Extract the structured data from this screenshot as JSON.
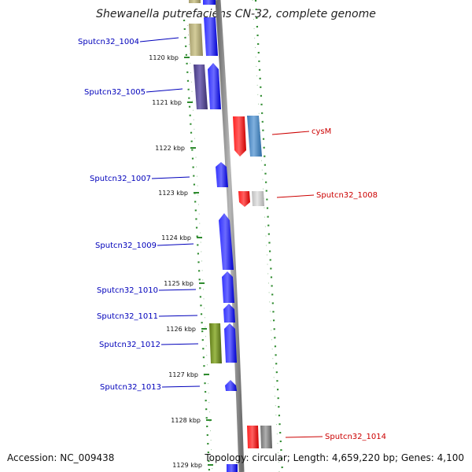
{
  "title": "Shewanella putrefaciens CN-32, complete genome",
  "footer": {
    "accession": "Accession: NC_009438",
    "summary": "Topology: circular; Length: 4,659,220 bp; Genes: 4,100"
  },
  "colors": {
    "forward_label": "#0000bb",
    "reverse_label": "#cc0000",
    "ring": "#2e8b2e",
    "backbone": "#888888"
  },
  "kbp_ticks": [
    "1120 kbp",
    "1121 kbp",
    "1122 kbp",
    "1123 kbp",
    "1124 kbp",
    "1125 kbp",
    "1126 kbp",
    "1127 kbp",
    "1128 kbp",
    "1129 kbp"
  ],
  "gene_labels": {
    "forward": [
      "Sputcn32_1004",
      "Sputcn32_1005",
      "Sputcn32_1007",
      "Sputcn32_1009",
      "Sputcn32_1010",
      "Sputcn32_1011",
      "Sputcn32_1012",
      "Sputcn32_1013"
    ],
    "reverse": [
      "cysM",
      "Sputcn32_1008",
      "Sputcn32_1014"
    ]
  }
}
